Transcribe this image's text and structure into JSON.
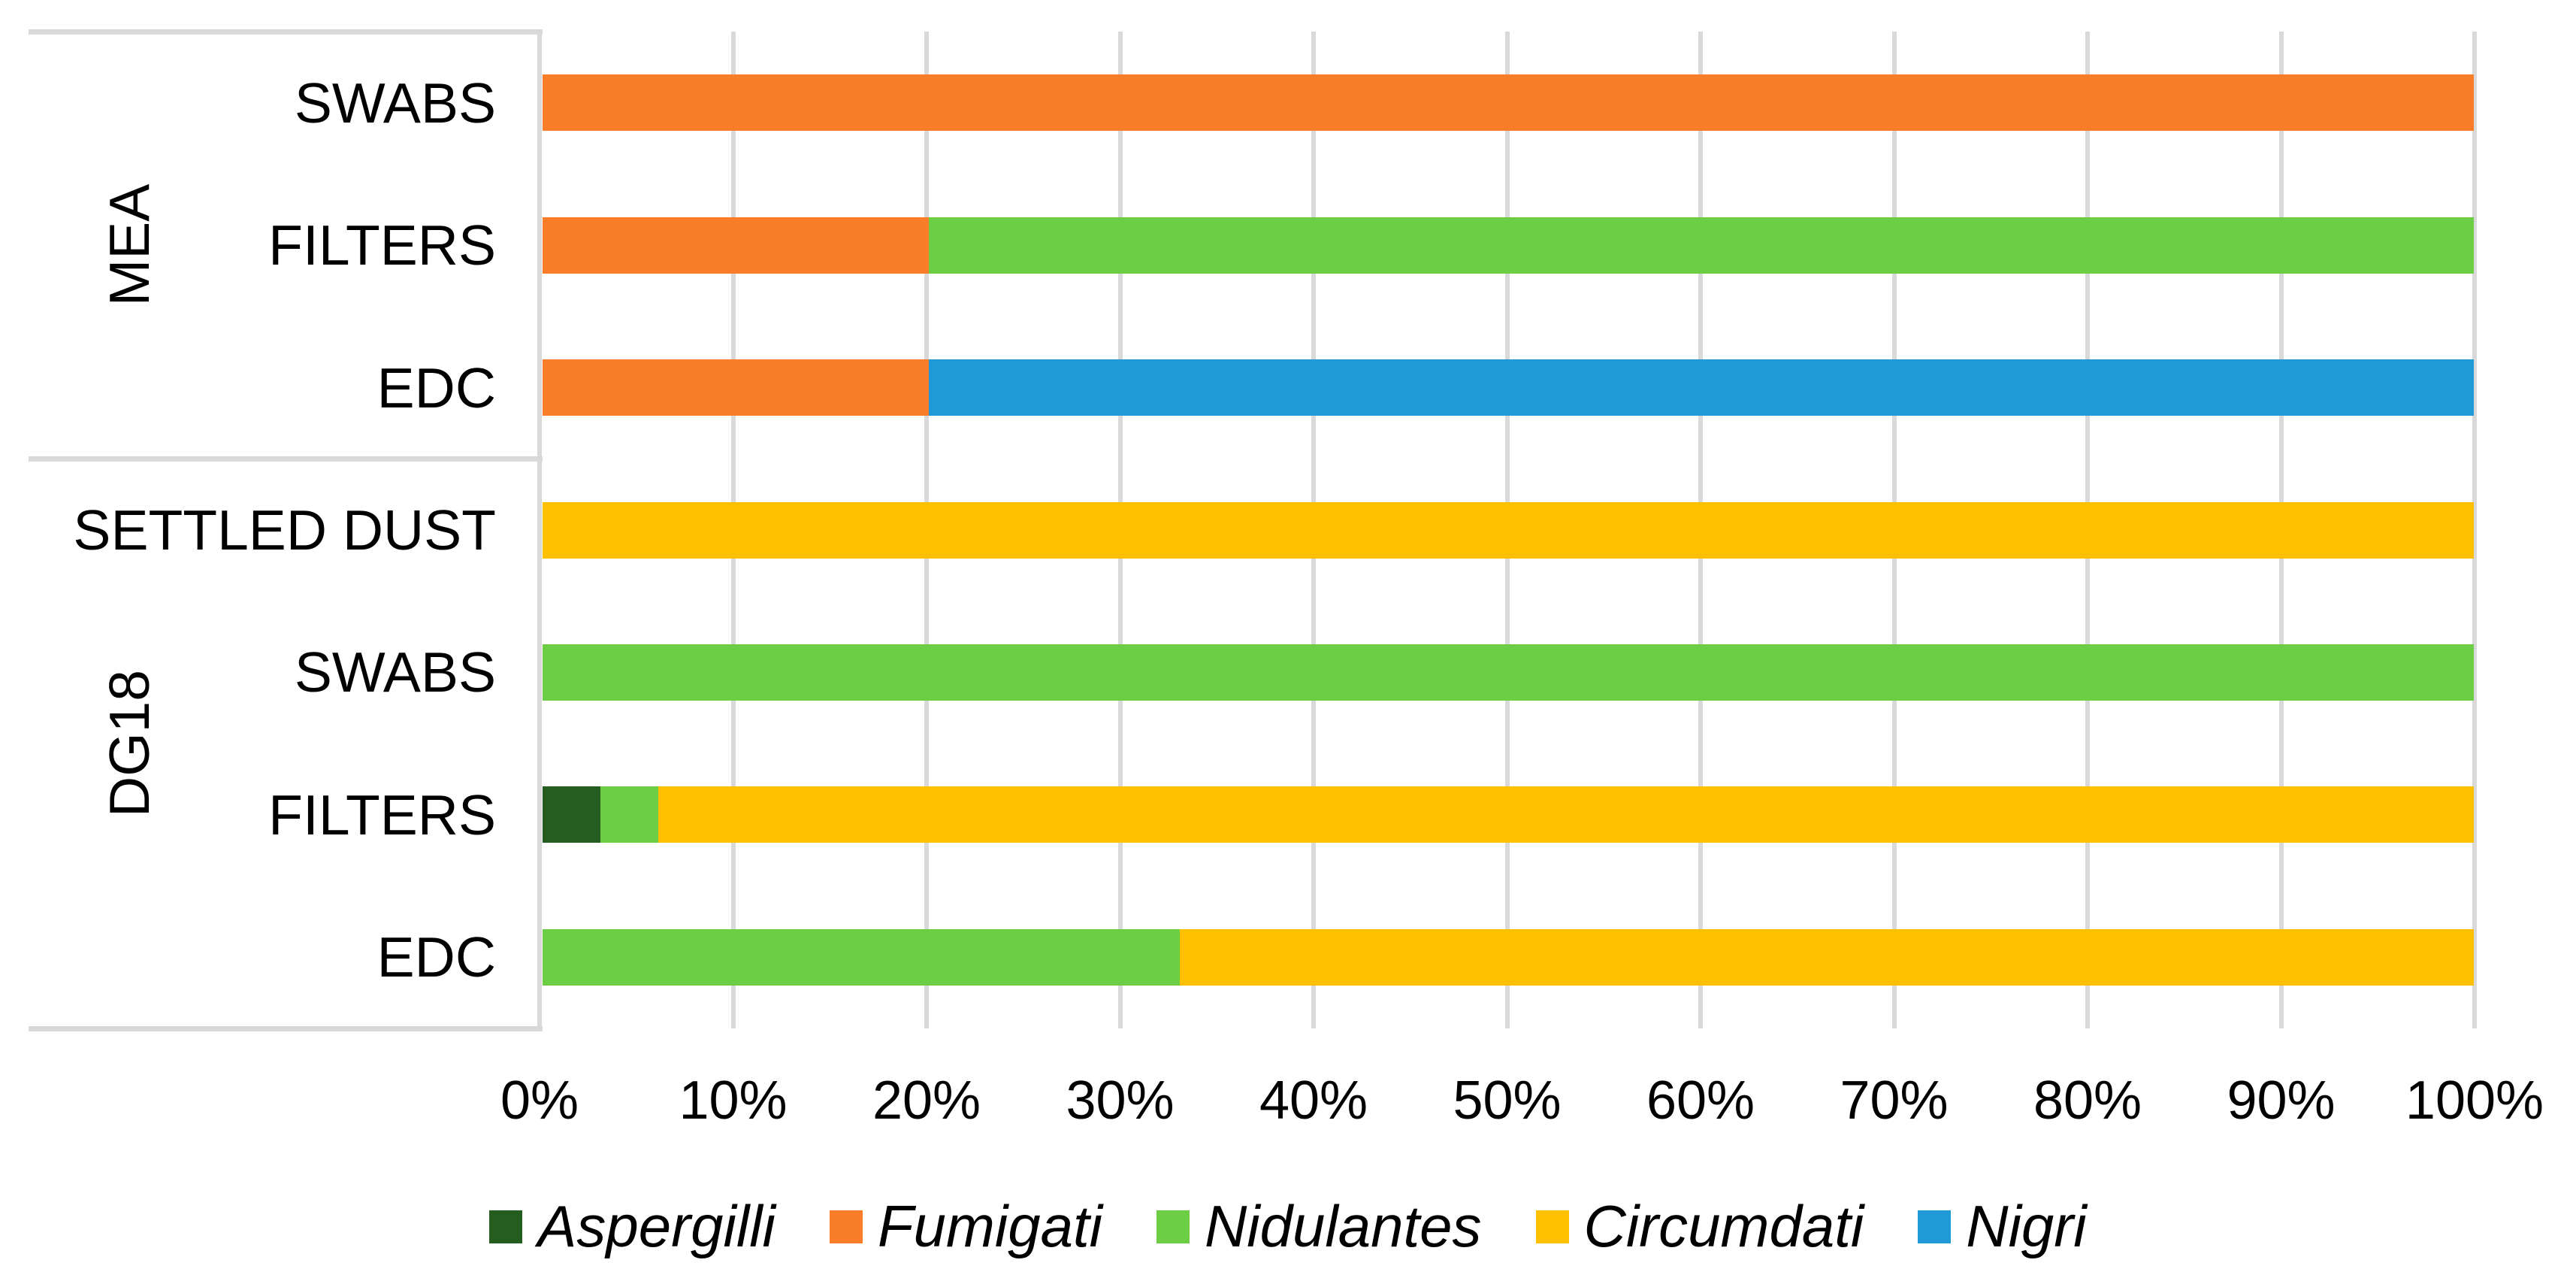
{
  "chart_data": {
    "type": "bar",
    "variant": "horizontal-stacked-100-percent",
    "title": "",
    "xlabel": "",
    "ylabel": "",
    "x_axis": {
      "min": 0,
      "max": 100,
      "unit": "%",
      "ticks": [
        "0%",
        "10%",
        "20%",
        "30%",
        "40%",
        "50%",
        "60%",
        "70%",
        "80%",
        "90%",
        "100%"
      ],
      "tick_values": [
        0,
        10,
        20,
        30,
        40,
        50,
        60,
        70,
        80,
        90,
        100
      ]
    },
    "grid": {
      "vertical": true,
      "horizontal": false,
      "color": "#D9D9D9"
    },
    "series": [
      {
        "name": "Aspergilli",
        "color": "#255D20"
      },
      {
        "name": "Fumigati",
        "color": "#FA7D2A"
      },
      {
        "name": "Nidulantes",
        "color": "#6CCE44"
      },
      {
        "name": "Circumdati",
        "color": "#FFC002"
      },
      {
        "name": "Nigri",
        "color": "#1F9AD7"
      }
    ],
    "groups": [
      {
        "label": "MEA",
        "rows": [
          {
            "label": "SWABS",
            "segments": [
              {
                "series": "Fumigati",
                "value": 100
              }
            ]
          },
          {
            "label": "FILTERS",
            "segments": [
              {
                "series": "Fumigati",
                "value": 20
              },
              {
                "series": "Nidulantes",
                "value": 80
              }
            ]
          },
          {
            "label": "EDC",
            "segments": [
              {
                "series": "Fumigati",
                "value": 20
              },
              {
                "series": "Nigri",
                "value": 80
              }
            ]
          }
        ]
      },
      {
        "label": "DG18",
        "rows": [
          {
            "label": "SETTLED DUST",
            "segments": [
              {
                "series": "Circumdati",
                "value": 100
              }
            ]
          },
          {
            "label": "SWABS",
            "segments": [
              {
                "series": "Nidulantes",
                "value": 100
              }
            ]
          },
          {
            "label": "FILTERS",
            "segments": [
              {
                "series": "Aspergilli",
                "value": 3
              },
              {
                "series": "Nidulantes",
                "value": 3
              },
              {
                "series": "Circumdati",
                "value": 94
              }
            ]
          },
          {
            "label": "EDC",
            "segments": [
              {
                "series": "Nidulantes",
                "value": 33
              },
              {
                "series": "Circumdati",
                "value": 67
              }
            ]
          }
        ]
      }
    ],
    "legend": {
      "position": "bottom",
      "italic": true,
      "entries": [
        "Aspergilli",
        "Fumigati",
        "Nidulantes",
        "Circumdati",
        "Nigri"
      ]
    }
  }
}
